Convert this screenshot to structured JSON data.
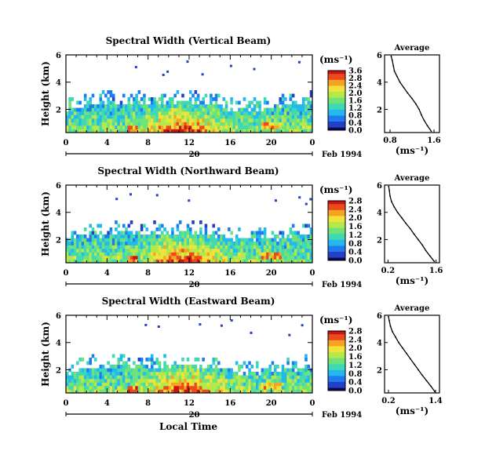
{
  "colors": {
    "colormap": [
      "#0a0a50",
      "#2540c8",
      "#1f7cf0",
      "#23b8ee",
      "#3fd9b3",
      "#6fe37a",
      "#b5e94a",
      "#f2e23a",
      "#f6a223",
      "#ea4a1c",
      "#c81414"
    ],
    "background": "#ffffff",
    "axis": "#000000"
  },
  "figure": {
    "date_label": "Feb 1994",
    "day_label": "20",
    "xlabel": "Local Time",
    "units_label": "(ms⁻¹)"
  },
  "chart_data": [
    {
      "type": "heatmap",
      "title": "Spectral Width (Vertical Beam)",
      "ylabel": "Height (km)",
      "xlabel": "Local Time",
      "x_ticks": [
        "0",
        "4",
        "8",
        "12",
        "16",
        "20",
        "0"
      ],
      "y_ticks": [
        "2",
        "4",
        "6"
      ],
      "xlim": [
        0,
        24
      ],
      "ylim": [
        0.3,
        6
      ],
      "colorbar": {
        "label": "(ms⁻¹)",
        "ticks": [
          "0.0",
          "0.4",
          "0.8",
          "1.2",
          "1.6",
          "2.0",
          "2.4",
          "2.8",
          "3.6"
        ]
      },
      "profile": {
        "title": "Average",
        "xlabel": "(ms⁻¹)",
        "x_ticks": [
          "0.8",
          "1.6"
        ],
        "xlim": [
          0.7,
          1.7
        ],
        "y_ticks": [
          "2",
          "4",
          "6"
        ],
        "ylim": [
          0.3,
          6
        ],
        "heights": [
          0.4,
          0.8,
          1.2,
          1.6,
          2.0,
          2.4,
          2.8,
          3.2,
          3.6,
          4.0,
          4.4,
          4.8,
          5.2,
          5.6,
          5.9
        ],
        "values": [
          1.55,
          1.48,
          1.42,
          1.37,
          1.33,
          1.27,
          1.2,
          1.12,
          1.05,
          0.98,
          0.93,
          0.88,
          0.86,
          0.84,
          0.82
        ]
      }
    },
    {
      "type": "heatmap",
      "title": "Spectral Width (Northward Beam)",
      "ylabel": "Height (km)",
      "xlabel": "Local Time",
      "x_ticks": [
        "0",
        "4",
        "8",
        "12",
        "16",
        "20",
        "0"
      ],
      "y_ticks": [
        "2",
        "4",
        "6"
      ],
      "xlim": [
        0,
        24
      ],
      "ylim": [
        0.3,
        6
      ],
      "colorbar": {
        "label": "(ms⁻¹)",
        "ticks": [
          "0.0",
          "0.4",
          "0.8",
          "1.2",
          "1.6",
          "2.0",
          "2.4",
          "2.8"
        ]
      },
      "profile": {
        "title": "Average",
        "xlabel": "(ms⁻¹)",
        "x_ticks": [
          "0.2",
          "1.6"
        ],
        "xlim": [
          0.1,
          1.7
        ],
        "y_ticks": [
          "2",
          "4",
          "6"
        ],
        "ylim": [
          0.3,
          6
        ],
        "heights": [
          0.4,
          0.8,
          1.2,
          1.6,
          2.0,
          2.4,
          2.8,
          3.2,
          3.6,
          4.0,
          4.4,
          4.8,
          5.2,
          5.6,
          5.9
        ],
        "values": [
          1.55,
          1.42,
          1.3,
          1.2,
          1.08,
          0.96,
          0.85,
          0.72,
          0.6,
          0.48,
          0.38,
          0.3,
          0.26,
          0.24,
          0.22
        ]
      }
    },
    {
      "type": "heatmap",
      "title": "Spectral Width (Eastward Beam)",
      "ylabel": "Height (km)",
      "xlabel": "Local Time",
      "x_ticks": [
        "0",
        "4",
        "8",
        "12",
        "16",
        "20",
        "0"
      ],
      "y_ticks": [
        "2",
        "4",
        "6"
      ],
      "xlim": [
        0,
        24
      ],
      "ylim": [
        0.3,
        6
      ],
      "colorbar": {
        "label": "(ms⁻¹)",
        "ticks": [
          "0.0",
          "0.4",
          "0.8",
          "1.2",
          "1.6",
          "2.0",
          "2.4",
          "2.8"
        ]
      },
      "profile": {
        "title": "Average",
        "xlabel": "(ms⁻¹)",
        "x_ticks": [
          "0.2",
          "1.4"
        ],
        "xlim": [
          0.1,
          1.5
        ],
        "y_ticks": [
          "2",
          "4",
          "6"
        ],
        "ylim": [
          0.3,
          6
        ],
        "heights": [
          0.4,
          0.8,
          1.2,
          1.6,
          2.0,
          2.4,
          2.8,
          3.2,
          3.6,
          4.0,
          4.4,
          4.8,
          5.2,
          5.6,
          5.9
        ],
        "values": [
          1.38,
          1.28,
          1.17,
          1.06,
          0.96,
          0.86,
          0.76,
          0.66,
          0.56,
          0.46,
          0.38,
          0.3,
          0.25,
          0.22,
          0.2
        ]
      }
    }
  ]
}
